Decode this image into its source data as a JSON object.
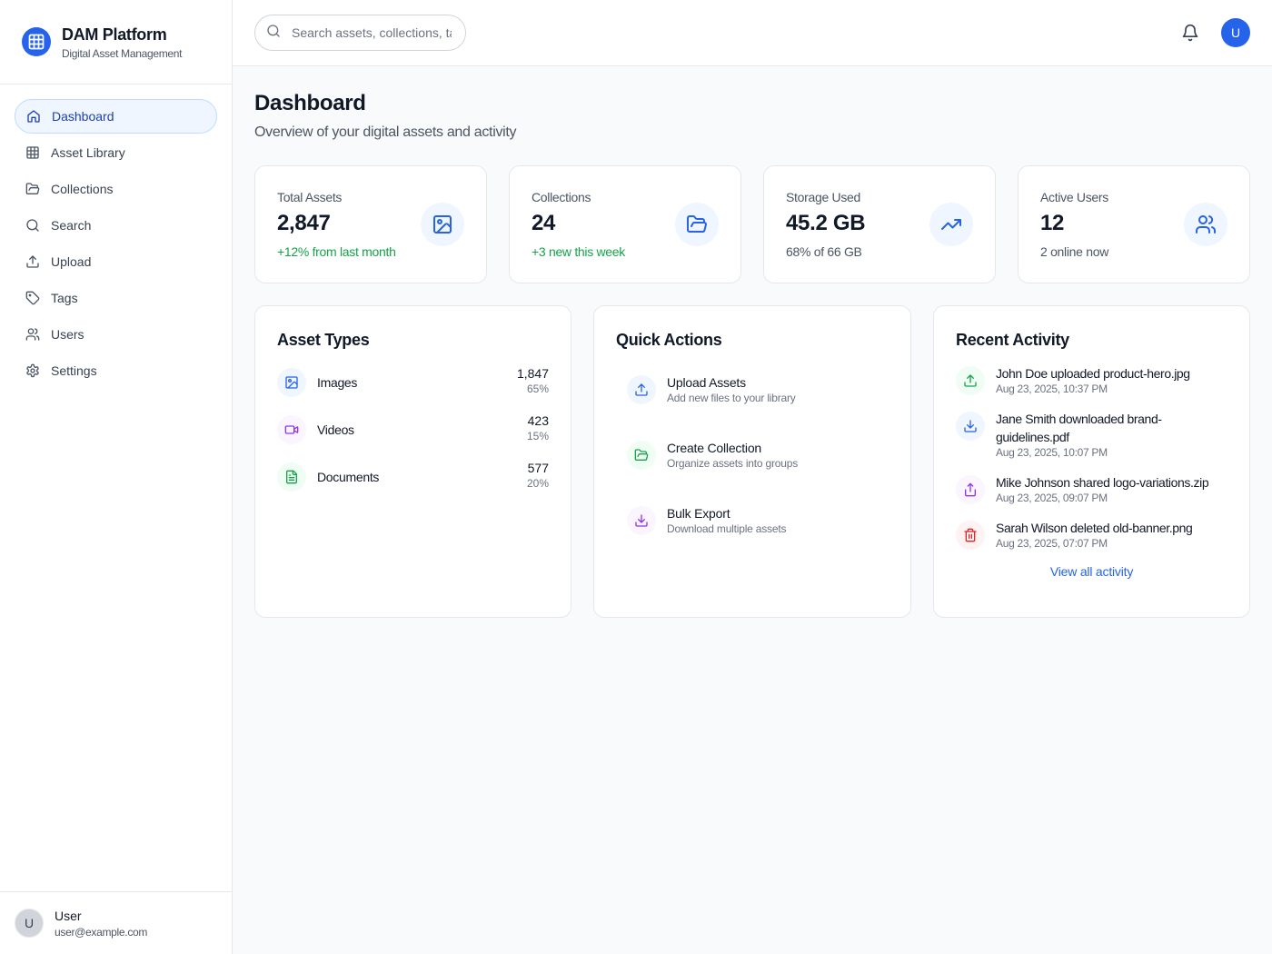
{
  "brand": {
    "title": "DAM Platform",
    "subtitle": "Digital Asset Management"
  },
  "sidebar": {
    "items": [
      {
        "label": "Dashboard",
        "icon": "home-icon",
        "active": true
      },
      {
        "label": "Asset Library",
        "icon": "grid-icon"
      },
      {
        "label": "Collections",
        "icon": "folder-open-icon"
      },
      {
        "label": "Search",
        "icon": "search-icon"
      },
      {
        "label": "Upload",
        "icon": "upload-icon"
      },
      {
        "label": "Tags",
        "icon": "tag-icon"
      },
      {
        "label": "Users",
        "icon": "users-icon"
      },
      {
        "label": "Settings",
        "icon": "gear-icon"
      }
    ],
    "user": {
      "initial": "U",
      "name": "User",
      "email": "user@example.com"
    }
  },
  "topbar": {
    "search_placeholder": "Search assets, collections, tags...",
    "avatar_initial": "U"
  },
  "page": {
    "title": "Dashboard",
    "subtitle": "Overview of your digital assets and activity"
  },
  "stats": [
    {
      "label": "Total Assets",
      "value": "2,847",
      "note": "+12% from last month",
      "note_color": "#16a34a",
      "icon": "image-icon"
    },
    {
      "label": "Collections",
      "value": "24",
      "note": "+3 new this week",
      "note_color": "#16a34a",
      "icon": "folder-open-icon"
    },
    {
      "label": "Storage Used",
      "value": "45.2 GB",
      "note": "68% of 66 GB",
      "note_color": "#4b5563",
      "icon": "trending-up-icon"
    },
    {
      "label": "Active Users",
      "value": "12",
      "note": "2 online now",
      "note_color": "#4b5563",
      "icon": "users-icon"
    }
  ],
  "asset_types": {
    "title": "Asset Types",
    "rows": [
      {
        "label": "Images",
        "count": "1,847",
        "pct": "65%",
        "icon": "image-icon",
        "color": "#2563eb",
        "bg": "#eff6ff"
      },
      {
        "label": "Videos",
        "count": "423",
        "pct": "15%",
        "icon": "video-icon",
        "color": "#9333ea",
        "bg": "#faf5ff"
      },
      {
        "label": "Documents",
        "count": "577",
        "pct": "20%",
        "icon": "document-icon",
        "color": "#16a34a",
        "bg": "#f0fdf4"
      }
    ]
  },
  "quick_actions": {
    "title": "Quick Actions",
    "items": [
      {
        "title": "Upload Assets",
        "subtitle": "Add new files to your library",
        "icon": "upload-icon",
        "color": "#2563eb",
        "bg": "#eff6ff"
      },
      {
        "title": "Create Collection",
        "subtitle": "Organize assets into groups",
        "icon": "folder-open-icon",
        "color": "#16a34a",
        "bg": "#f0fdf4"
      },
      {
        "title": "Bulk Export",
        "subtitle": "Download multiple assets",
        "icon": "download-icon",
        "color": "#9333ea",
        "bg": "#faf5ff"
      }
    ]
  },
  "recent_activity": {
    "title": "Recent Activity",
    "items": [
      {
        "message": "John Doe uploaded product-hero.jpg",
        "time": "Aug 23, 2025, 10:37 PM",
        "icon": "upload-icon",
        "color": "#16a34a",
        "bg": "#f0fdf4"
      },
      {
        "message": "Jane Smith downloaded brand-guidelines.pdf",
        "time": "Aug 23, 2025, 10:07 PM",
        "icon": "download-icon",
        "color": "#2563eb",
        "bg": "#eff6ff"
      },
      {
        "message": "Mike Johnson shared logo-variations.zip",
        "time": "Aug 23, 2025, 09:07 PM",
        "icon": "share-icon",
        "color": "#9333ea",
        "bg": "#faf5ff"
      },
      {
        "message": "Sarah Wilson deleted old-banner.png",
        "time": "Aug 23, 2025, 07:07 PM",
        "icon": "trash-icon",
        "color": "#dc2626",
        "bg": "#fef2f2"
      }
    ],
    "view_all": "View all activity"
  }
}
